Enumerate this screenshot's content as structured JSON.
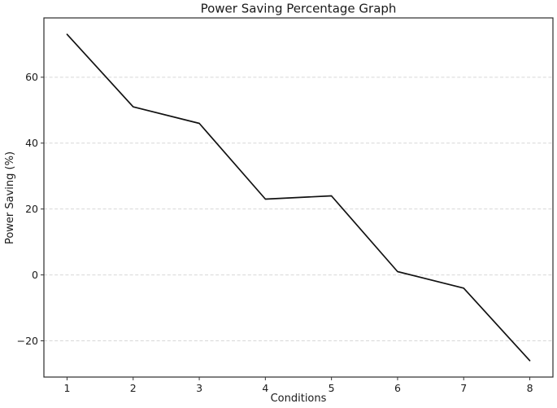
{
  "title": "Power Saving Percentage Graph",
  "chart_data": {
    "type": "line",
    "title": "Power Saving Percentage Graph",
    "xlabel": "Conditions",
    "ylabel": "Power Saving (%)",
    "x": [
      1,
      2,
      3,
      4,
      5,
      6,
      7,
      8
    ],
    "series": [
      {
        "name": "Power Saving",
        "values": [
          73,
          51,
          46,
          23,
          24,
          1,
          -4,
          -26
        ]
      }
    ],
    "xticks": {
      "values": [
        1,
        2,
        3,
        4,
        5,
        6,
        7,
        8
      ],
      "labels": [
        "1",
        "2",
        "3",
        "4",
        "5",
        "6",
        "7",
        "8"
      ]
    },
    "yticks": {
      "values": [
        -20,
        0,
        20,
        40,
        60
      ],
      "labels": [
        "−20",
        "0",
        "20",
        "40",
        "60"
      ]
    },
    "xlim": [
      0.65,
      8.35
    ],
    "ylim": [
      -31,
      78
    ],
    "grid": "horizontal, dashed, on",
    "legend": "none",
    "colors": {
      "line": "#111111",
      "grid": "#d7d7d7",
      "spine": "#2b2b2b",
      "tick": "#333333",
      "text": "#1a1a1a",
      "background": "#ffffff"
    }
  }
}
